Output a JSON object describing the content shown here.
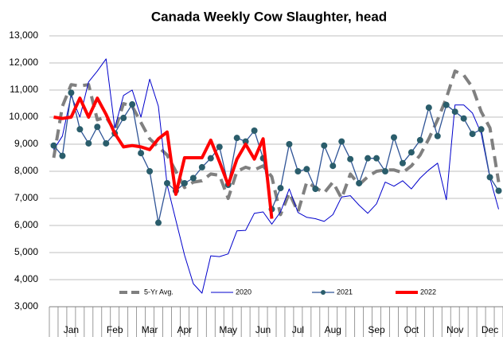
{
  "chart_data": {
    "type": "line",
    "title": "Canada Weekly Cow Slaughter, head",
    "categories": [
      null,
      null,
      "Jan",
      null,
      null,
      null,
      null,
      "Feb",
      null,
      null,
      null,
      "Mar",
      null,
      null,
      null,
      "Apr",
      null,
      null,
      null,
      null,
      "May",
      null,
      null,
      null,
      "Jun",
      null,
      null,
      null,
      "Jul",
      null,
      null,
      null,
      "Aug",
      null,
      null,
      null,
      null,
      "Sep",
      null,
      null,
      null,
      "Oct",
      null,
      null,
      null,
      null,
      "Nov",
      null,
      null,
      null,
      "Dec",
      null
    ],
    "ylim": [
      3000,
      13000
    ],
    "yticks": [
      {
        "value": 3000,
        "label": "3,000"
      },
      {
        "value": 4000,
        "label": "4,000"
      },
      {
        "value": 5000,
        "label": "5,000"
      },
      {
        "value": 6000,
        "label": "6,000"
      },
      {
        "value": 7000,
        "label": "7,000"
      },
      {
        "value": 8000,
        "label": "8,000"
      },
      {
        "value": 9000,
        "label": "9,000"
      },
      {
        "value": 10000,
        "label": "10,000"
      },
      {
        "value": 11000,
        "label": "11,000"
      },
      {
        "value": 12000,
        "label": "12,000"
      },
      {
        "value": 13000,
        "label": "13,000"
      }
    ],
    "grid": true,
    "series": [
      {
        "name": "5-Yr Avg.",
        "color": "#808080",
        "values": [
          8500,
          10400,
          11200,
          11150,
          11200,
          9900,
          10000,
          9500,
          10500,
          10400,
          9800,
          9200,
          8900,
          8600,
          8000,
          7400,
          7600,
          7650,
          7900,
          7850,
          7000,
          8000,
          8150,
          8050,
          8200,
          7800,
          6400,
          7200,
          6500,
          7600,
          7400,
          7200,
          7600,
          7000,
          7900,
          7500,
          7800,
          8000,
          8050,
          8050,
          7950,
          8200,
          8600,
          9200,
          9900,
          10700,
          11700,
          11550,
          11100,
          10200,
          9600,
          7600
        ]
      },
      {
        "name": "2020",
        "color": "#0000cc",
        "values": [
          8800,
          9300,
          10800,
          10000,
          11300,
          11700,
          12150,
          9600,
          10800,
          11000,
          10000,
          11400,
          10400,
          7500,
          6200,
          4900,
          3850,
          3500,
          4880,
          4850,
          4950,
          5800,
          5820,
          6450,
          6500,
          6050,
          6500,
          7350,
          6480,
          6300,
          6250,
          6150,
          6400,
          7050,
          7100,
          6750,
          6450,
          6800,
          7600,
          7450,
          7650,
          7350,
          7750,
          8050,
          8300,
          6950,
          10450,
          10450,
          10150,
          9400,
          7750,
          6600
        ]
      },
      {
        "name": "2021",
        "color": "#2f5496",
        "values": [
          8950,
          8570,
          10900,
          9550,
          9030,
          9640,
          9030,
          9400,
          9970,
          10470,
          8670,
          8000,
          6100,
          7560,
          7280,
          7560,
          7750,
          8150,
          8480,
          8900,
          7500,
          9230,
          9100,
          9500,
          8480,
          6600,
          7380,
          9000,
          8000,
          8080,
          7350,
          8950,
          8200,
          9100,
          8450,
          7560,
          8480,
          8480,
          8000,
          9250,
          8300,
          8700,
          9150,
          10350,
          9300,
          10450,
          10200,
          9950,
          9380,
          9550,
          7780,
          7280
        ]
      },
      {
        "name": "2022",
        "color": "#ff0000",
        "values": [
          10000,
          9950,
          10000,
          10700,
          10000,
          10700,
          10100,
          9400,
          8900,
          8950,
          8900,
          8800,
          9200,
          9450,
          7150,
          8500,
          8500,
          8500,
          9150,
          8350,
          7500,
          8450,
          9000,
          8450,
          9200,
          6250,
          null,
          null,
          null,
          null,
          null,
          null,
          null,
          null,
          null,
          null,
          null,
          null,
          null,
          null,
          null,
          null,
          null,
          null,
          null,
          null,
          null,
          null,
          null,
          null,
          null,
          null
        ]
      }
    ]
  }
}
